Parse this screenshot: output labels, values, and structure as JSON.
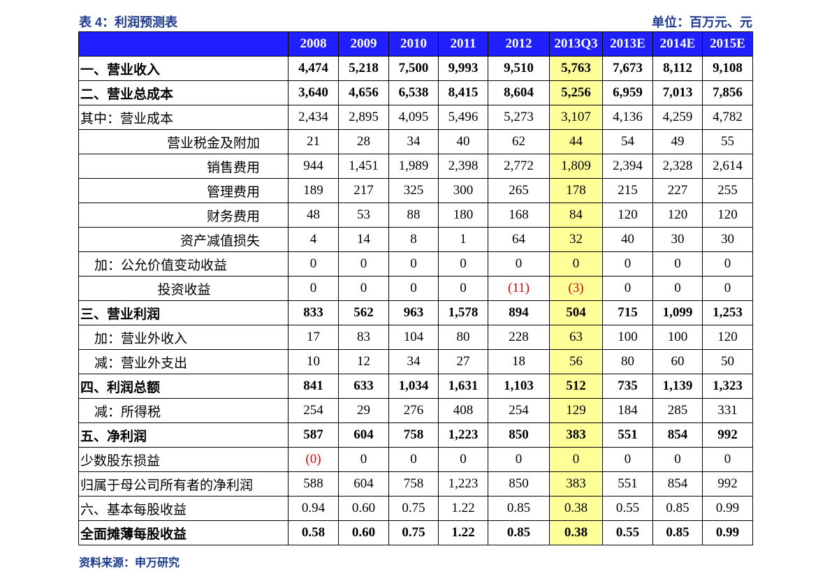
{
  "header": {
    "title": "表 4：利润预测表",
    "unit": "单位：百万元、元"
  },
  "table": {
    "columns": [
      "2008",
      "2009",
      "2010",
      "2011",
      "2012",
      "2013Q3",
      "2013E",
      "2014E",
      "2015E"
    ],
    "highlight_column": "2013Q3",
    "rows": [
      {
        "label": "一、营业收入",
        "cells": [
          "4,474",
          "5,218",
          "7,500",
          "9,993",
          "9,510",
          "5,763",
          "7,673",
          "8,112",
          "9,108"
        ]
      },
      {
        "label": "二、营业总成本",
        "cells": [
          "3,640",
          "4,656",
          "6,538",
          "8,415",
          "8,604",
          "5,256",
          "6,959",
          "7,013",
          "7,856"
        ]
      },
      {
        "label": "其中：营业成本",
        "cells": [
          "2,434",
          "2,895",
          "4,095",
          "5,496",
          "5,273",
          "3,107",
          "4,136",
          "4,259",
          "4,782"
        ]
      },
      {
        "label": "营业税金及附加",
        "cells": [
          "21",
          "28",
          "34",
          "40",
          "62",
          "44",
          "54",
          "49",
          "55"
        ]
      },
      {
        "label": "销售费用",
        "cells": [
          "944",
          "1,451",
          "1,989",
          "2,398",
          "2,772",
          "1,809",
          "2,394",
          "2,328",
          "2,614"
        ]
      },
      {
        "label": "管理费用",
        "cells": [
          "189",
          "217",
          "325",
          "300",
          "265",
          "178",
          "215",
          "227",
          "255"
        ]
      },
      {
        "label": "财务费用",
        "cells": [
          "48",
          "53",
          "88",
          "180",
          "168",
          "84",
          "120",
          "120",
          "120"
        ]
      },
      {
        "label": "资产减值损失",
        "cells": [
          "4",
          "14",
          "8",
          "1",
          "64",
          "32",
          "40",
          "30",
          "30"
        ]
      },
      {
        "label": "加：公允价值变动收益",
        "cells": [
          "0",
          "0",
          "0",
          "0",
          "0",
          "0",
          "0",
          "0",
          "0"
        ]
      },
      {
        "label": "投资收益",
        "cells": [
          "0",
          "0",
          "0",
          "0",
          "(11)",
          "(3)",
          "0",
          "0",
          "0"
        ]
      },
      {
        "label": "三、营业利润",
        "cells": [
          "833",
          "562",
          "963",
          "1,578",
          "894",
          "504",
          "715",
          "1,099",
          "1,253"
        ]
      },
      {
        "label": "加：营业外收入",
        "cells": [
          "17",
          "83",
          "104",
          "80",
          "228",
          "63",
          "100",
          "100",
          "120"
        ]
      },
      {
        "label": "减：营业外支出",
        "cells": [
          "10",
          "12",
          "34",
          "27",
          "18",
          "56",
          "80",
          "60",
          "50"
        ]
      },
      {
        "label": "四、利润总额",
        "cells": [
          "841",
          "633",
          "1,034",
          "1,631",
          "1,103",
          "512",
          "735",
          "1,139",
          "1,323"
        ]
      },
      {
        "label": "减：所得税",
        "cells": [
          "254",
          "29",
          "276",
          "408",
          "254",
          "129",
          "184",
          "285",
          "331"
        ]
      },
      {
        "label": "五、净利润",
        "cells": [
          "587",
          "604",
          "758",
          "1,223",
          "850",
          "383",
          "551",
          "854",
          "992"
        ]
      },
      {
        "label": "少数股东损益",
        "cells": [
          "(0)",
          "0",
          "0",
          "0",
          "0",
          "0",
          "0",
          "0",
          "0"
        ]
      },
      {
        "label": "归属于母公司所有者的净利润",
        "cells": [
          "588",
          "604",
          "758",
          "1,223",
          "850",
          "383",
          "551",
          "854",
          "992"
        ]
      },
      {
        "label": "六、基本每股收益",
        "cells": [
          "0.94",
          "0.60",
          "0.75",
          "1.22",
          "0.85",
          "0.38",
          "0.55",
          "0.85",
          "0.99"
        ]
      },
      {
        "label": "全面摊薄每股收益",
        "cells": [
          "0.58",
          "0.60",
          "0.75",
          "1.22",
          "0.85",
          "0.38",
          "0.55",
          "0.85",
          "0.99"
        ]
      }
    ]
  },
  "footer": {
    "source": "资料来源：申万研究"
  }
}
